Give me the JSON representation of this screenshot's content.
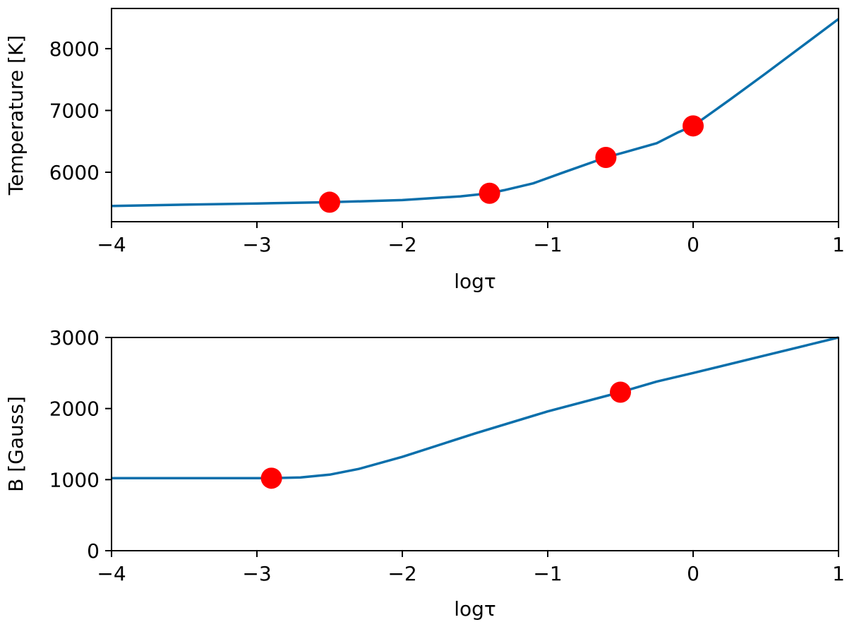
{
  "chart_data": [
    {
      "type": "line",
      "xlabel": "logτ",
      "ylabel": "Temperature [K]",
      "xlim": [
        -4,
        1
      ],
      "ylim": [
        5200,
        8650
      ],
      "xticks": [
        -4,
        -3,
        -2,
        -1,
        0,
        1
      ],
      "xtick_labels": [
        "−4",
        "−3",
        "−2",
        "−1",
        "0",
        "1"
      ],
      "yticks": [
        6000,
        7000,
        8000
      ],
      "ytick_labels": [
        "6000",
        "7000",
        "8000"
      ],
      "grid": false,
      "series": [
        {
          "color": "#0a6fab",
          "x": [
            -4,
            -3.5,
            -3,
            -2.5,
            -2,
            -1.6,
            -1.4,
            -1.3,
            -1.1,
            -0.9,
            -0.6,
            -0.4,
            -0.25,
            -0.1,
            0,
            0.25,
            0.5,
            0.75,
            1
          ],
          "y": [
            5455,
            5475,
            5495,
            5515,
            5550,
            5610,
            5660,
            5710,
            5820,
            5990,
            6240,
            6370,
            6470,
            6650,
            6750,
            7170,
            7600,
            8040,
            8480
          ]
        }
      ],
      "markers": {
        "color": "#ff0000",
        "x": [
          -2.5,
          -1.4,
          -0.6,
          0
        ],
        "y": [
          5515,
          5660,
          6240,
          6750
        ]
      }
    },
    {
      "type": "line",
      "xlabel": "logτ",
      "ylabel": "B [Gauss]",
      "xlim": [
        -4,
        1
      ],
      "ylim": [
        0,
        3000
      ],
      "xticks": [
        -4,
        -3,
        -2,
        -1,
        0,
        1
      ],
      "xtick_labels": [
        "−4",
        "−3",
        "−2",
        "−1",
        "0",
        "1"
      ],
      "yticks": [
        0,
        1000,
        2000,
        3000
      ],
      "ytick_labels": [
        "0",
        "1000",
        "2000",
        "3000"
      ],
      "grid": false,
      "series": [
        {
          "color": "#0a6fab",
          "x": [
            -4,
            -3.5,
            -3,
            -2.9,
            -2.7,
            -2.5,
            -2.3,
            -2,
            -1.5,
            -1,
            -0.5,
            -0.25,
            0,
            0.5,
            1
          ],
          "y": [
            1020,
            1020,
            1020,
            1020,
            1030,
            1070,
            1150,
            1320,
            1650,
            1960,
            2230,
            2380,
            2500,
            2750,
            3000
          ]
        }
      ],
      "markers": {
        "color": "#ff0000",
        "x": [
          -2.9,
          -0.5
        ],
        "y": [
          1020,
          2230
        ]
      }
    }
  ]
}
